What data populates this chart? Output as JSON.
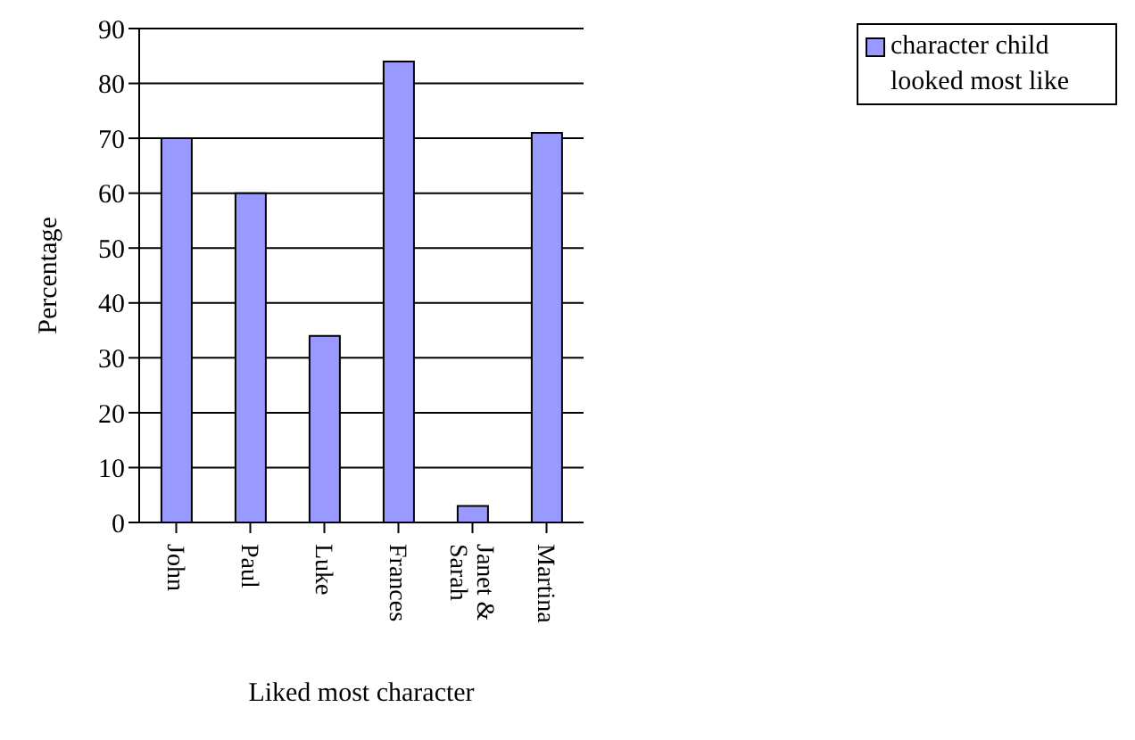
{
  "chart_data": {
    "type": "bar",
    "xlabel": "Liked most character",
    "ylabel": "Percentage",
    "categories": [
      "John",
      "Paul",
      "Luke",
      "Frances",
      "Janet & Sarah",
      "Martina"
    ],
    "series": [
      {
        "name": "character child looked most like",
        "color": "#9999ff",
        "values": [
          70,
          60,
          34,
          84,
          3,
          71
        ]
      }
    ],
    "ylim": [
      0,
      90
    ],
    "yticks": [
      0,
      10,
      20,
      30,
      40,
      50,
      60,
      70,
      80,
      90
    ],
    "grid": "y",
    "legend": "top right"
  }
}
